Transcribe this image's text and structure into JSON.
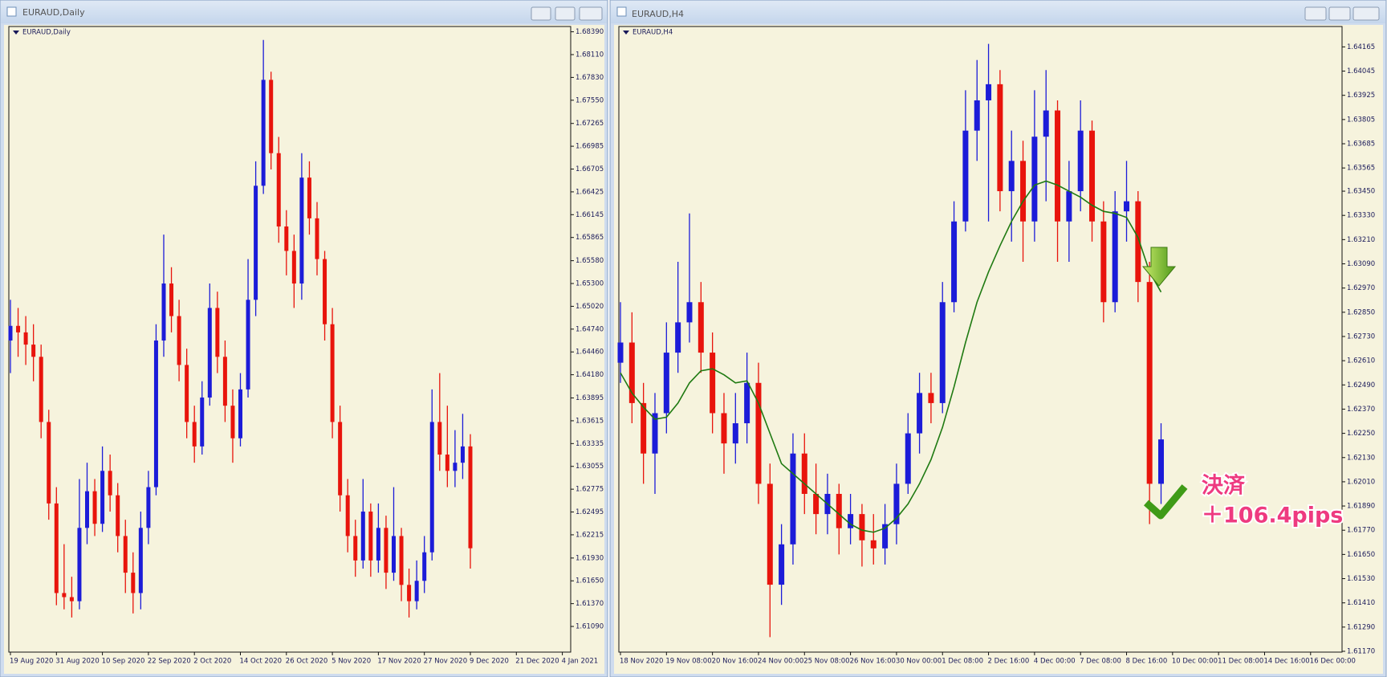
{
  "windows": [
    "EURAUD,Daily",
    "EURAUD,H4"
  ],
  "chart_data": [
    {
      "type": "candlestick",
      "title": "EURAUD,Daily",
      "up_color": "#1c1cd8",
      "down_color": "#e8140c",
      "ylim": [
        1.60775,
        1.68455
      ],
      "yticks": [
        {
          "value": 1.6839,
          "label": "1.68390"
        },
        {
          "value": 1.6811,
          "label": "1.68110"
        },
        {
          "value": 1.6783,
          "label": "1.67830"
        },
        {
          "value": 1.6755,
          "label": "1.67550"
        },
        1.67265,
        1.66985,
        1.66705,
        1.66425,
        1.66145,
        1.65865,
        {
          "value": 1.6558,
          "label": "1.65580"
        },
        {
          "value": 1.653,
          "label": "1.65300"
        },
        {
          "value": 1.6502,
          "label": "1.65020"
        },
        {
          "value": 1.6474,
          "label": "1.64740"
        },
        {
          "value": 1.6446,
          "label": "1.64460"
        },
        {
          "value": 1.6418,
          "label": "1.64180"
        },
        1.63895,
        1.63615,
        1.63335,
        1.63055,
        1.62775,
        1.62495,
        1.62215,
        {
          "value": 1.6193,
          "label": "1.61930"
        },
        {
          "value": 1.6165,
          "label": "1.61650"
        },
        {
          "value": 1.6137,
          "label": "1.61370"
        },
        {
          "value": 1.6109,
          "label": "1.61090"
        }
      ],
      "xticks": [
        "19 Aug 2020",
        "31 Aug 2020",
        "10 Sep 2020",
        "22 Sep 2020",
        "2 Oct 2020",
        "14 Oct 2020",
        "26 Oct 2020",
        "5 Nov 2020",
        "17 Nov 2020",
        "27 Nov 2020",
        "9 Dec 2020",
        "21 Dec 2020",
        "4 Jan 2021"
      ],
      "candles": [
        [
          1.646,
          1.651,
          1.642,
          1.6478
        ],
        [
          1.6478,
          1.65,
          1.644,
          1.647
        ],
        [
          1.647,
          1.649,
          1.643,
          1.6455
        ],
        [
          1.6455,
          1.648,
          1.641,
          1.644
        ],
        [
          1.644,
          1.6455,
          1.634,
          1.636
        ],
        [
          1.636,
          1.6375,
          1.624,
          1.626
        ],
        [
          1.626,
          1.628,
          1.6135,
          1.615
        ],
        [
          1.615,
          1.621,
          1.613,
          1.6145
        ],
        [
          1.6145,
          1.617,
          1.612,
          1.614
        ],
        [
          1.614,
          1.629,
          1.613,
          1.623
        ],
        [
          1.623,
          1.631,
          1.621,
          1.6275
        ],
        [
          1.6275,
          1.629,
          1.622,
          1.6235
        ],
        [
          1.6235,
          1.633,
          1.6225,
          1.63
        ],
        [
          1.63,
          1.632,
          1.625,
          1.627
        ],
        [
          1.627,
          1.6285,
          1.62,
          1.622
        ],
        [
          1.622,
          1.624,
          1.615,
          1.6175
        ],
        [
          1.6175,
          1.62,
          1.6125,
          1.615
        ],
        [
          1.615,
          1.625,
          1.613,
          1.623
        ],
        [
          1.623,
          1.63,
          1.621,
          1.628
        ],
        [
          1.628,
          1.648,
          1.627,
          1.646
        ],
        [
          1.646,
          1.659,
          1.644,
          1.653
        ],
        [
          1.653,
          1.655,
          1.647,
          1.649
        ],
        [
          1.649,
          1.651,
          1.641,
          1.643
        ],
        [
          1.643,
          1.645,
          1.634,
          1.636
        ],
        [
          1.636,
          1.638,
          1.631,
          1.633
        ],
        [
          1.633,
          1.641,
          1.632,
          1.639
        ],
        [
          1.639,
          1.653,
          1.638,
          1.65
        ],
        [
          1.65,
          1.652,
          1.642,
          1.644
        ],
        [
          1.644,
          1.646,
          1.636,
          1.638
        ],
        [
          1.638,
          1.64,
          1.631,
          1.634
        ],
        [
          1.634,
          1.642,
          1.633,
          1.64
        ],
        [
          1.64,
          1.656,
          1.639,
          1.651
        ],
        [
          1.651,
          1.668,
          1.649,
          1.665
        ],
        [
          1.665,
          1.6829,
          1.664,
          1.678
        ],
        [
          1.678,
          1.679,
          1.667,
          1.669
        ],
        [
          1.669,
          1.671,
          1.658,
          1.66
        ],
        [
          1.66,
          1.662,
          1.654,
          1.657
        ],
        [
          1.657,
          1.659,
          1.65,
          1.653
        ],
        [
          1.653,
          1.669,
          1.651,
          1.666
        ],
        [
          1.666,
          1.668,
          1.659,
          1.661
        ],
        [
          1.661,
          1.663,
          1.654,
          1.656
        ],
        [
          1.656,
          1.657,
          1.646,
          1.648
        ],
        [
          1.648,
          1.65,
          1.634,
          1.636
        ],
        [
          1.636,
          1.638,
          1.625,
          1.627
        ],
        [
          1.627,
          1.629,
          1.62,
          1.622
        ],
        [
          1.622,
          1.624,
          1.617,
          1.619
        ],
        [
          1.619,
          1.629,
          1.618,
          1.625
        ],
        [
          1.625,
          1.626,
          1.617,
          1.619
        ],
        [
          1.619,
          1.626,
          1.6175,
          1.623
        ],
        [
          1.623,
          1.6245,
          1.6155,
          1.6175
        ],
        [
          1.6175,
          1.628,
          1.6165,
          1.622
        ],
        [
          1.622,
          1.623,
          1.614,
          1.616
        ],
        [
          1.616,
          1.618,
          1.612,
          1.614
        ],
        [
          1.614,
          1.619,
          1.613,
          1.6165
        ],
        [
          1.6165,
          1.622,
          1.615,
          1.62
        ],
        [
          1.62,
          1.64,
          1.619,
          1.636
        ],
        [
          1.636,
          1.642,
          1.63,
          1.632
        ],
        [
          1.632,
          1.638,
          1.628,
          1.63
        ],
        [
          1.63,
          1.635,
          1.628,
          1.631
        ],
        [
          1.631,
          1.637,
          1.629,
          1.633
        ],
        [
          1.633,
          1.6345,
          1.618,
          1.6205
        ]
      ]
    },
    {
      "type": "candlestick",
      "title": "EURAUD,H4",
      "up_color": "#1c1cd8",
      "down_color": "#e8140c",
      "ma_color": "#1f7a12",
      "ylim": [
        1.61166,
        1.64266
      ],
      "yticks": [
        1.64165,
        1.64045,
        1.63925,
        1.63805,
        1.63685,
        1.63565,
        {
          "value": 1.6345,
          "label": "1.63450"
        },
        {
          "value": 1.6333,
          "label": "1.63330"
        },
        {
          "value": 1.6321,
          "label": "1.63210"
        },
        {
          "value": 1.6309,
          "label": "1.63090"
        },
        {
          "value": 1.6297,
          "label": "1.62970"
        },
        {
          "value": 1.6285,
          "label": "1.62850"
        },
        {
          "value": 1.6273,
          "label": "1.62730"
        },
        {
          "value": 1.6261,
          "label": "1.62610"
        },
        {
          "value": 1.6249,
          "label": "1.62490"
        },
        {
          "value": 1.6237,
          "label": "1.62370"
        },
        {
          "value": 1.6225,
          "label": "1.62250"
        },
        {
          "value": 1.6213,
          "label": "1.62130"
        },
        {
          "value": 1.6201,
          "label": "1.62010"
        },
        {
          "value": 1.6189,
          "label": "1.61890"
        },
        {
          "value": 1.6177,
          "label": "1.61770"
        },
        {
          "value": 1.6165,
          "label": "1.61650"
        },
        {
          "value": 1.6153,
          "label": "1.61530"
        },
        {
          "value": 1.6141,
          "label": "1.61410"
        },
        {
          "value": 1.6129,
          "label": "1.61290"
        },
        {
          "value": 1.6117,
          "label": "1.61170"
        }
      ],
      "xticks": [
        "18 Nov 2020",
        "19 Nov 08:00",
        "20 Nov 16:00",
        "24 Nov 00:00",
        "25 Nov 08:00",
        "26 Nov 16:00",
        "30 Nov 00:00",
        "1 Dec 08:00",
        "2 Dec 16:00",
        "4 Dec 00:00",
        "7 Dec 08:00",
        "8 Dec 16:00",
        "10 Dec 00:00",
        "11 Dec 08:00",
        "14 Dec 16:00",
        "16 Dec 00:00"
      ],
      "candles": [
        [
          1.626,
          1.629,
          1.625,
          1.627
        ],
        [
          1.627,
          1.6285,
          1.623,
          1.624
        ],
        [
          1.624,
          1.625,
          1.62,
          1.6215
        ],
        [
          1.6215,
          1.6245,
          1.6195,
          1.6235
        ],
        [
          1.6235,
          1.628,
          1.6225,
          1.6265
        ],
        [
          1.6265,
          1.631,
          1.6255,
          1.628
        ],
        [
          1.628,
          1.6334,
          1.627,
          1.629
        ],
        [
          1.629,
          1.63,
          1.6255,
          1.6265
        ],
        [
          1.6265,
          1.6275,
          1.6225,
          1.6235
        ],
        [
          1.6235,
          1.6245,
          1.6205,
          1.622
        ],
        [
          1.622,
          1.6245,
          1.621,
          1.623
        ],
        [
          1.623,
          1.6265,
          1.622,
          1.625
        ],
        [
          1.625,
          1.626,
          1.619,
          1.62
        ],
        [
          1.62,
          1.621,
          1.6124,
          1.615
        ],
        [
          1.615,
          1.618,
          1.614,
          1.617
        ],
        [
          1.617,
          1.6225,
          1.616,
          1.6215
        ],
        [
          1.6215,
          1.6225,
          1.6185,
          1.6195
        ],
        [
          1.6195,
          1.621,
          1.6175,
          1.6185
        ],
        [
          1.6185,
          1.6205,
          1.6175,
          1.6195
        ],
        [
          1.6195,
          1.62,
          1.6165,
          1.6178
        ],
        [
          1.6178,
          1.6195,
          1.617,
          1.6185
        ],
        [
          1.6185,
          1.619,
          1.6159,
          1.6172
        ],
        [
          1.6172,
          1.6185,
          1.616,
          1.6168
        ],
        [
          1.6168,
          1.619,
          1.616,
          1.618
        ],
        [
          1.618,
          1.621,
          1.617,
          1.62
        ],
        [
          1.62,
          1.6235,
          1.6195,
          1.6225
        ],
        [
          1.6225,
          1.6255,
          1.6215,
          1.6245
        ],
        [
          1.6245,
          1.6255,
          1.623,
          1.624
        ],
        [
          1.624,
          1.63,
          1.6235,
          1.629
        ],
        [
          1.629,
          1.634,
          1.6285,
          1.633
        ],
        [
          1.633,
          1.6395,
          1.6325,
          1.6375
        ],
        [
          1.6375,
          1.641,
          1.636,
          1.639
        ],
        [
          1.639,
          1.6418,
          1.633,
          1.6398
        ],
        [
          1.6398,
          1.6405,
          1.6335,
          1.6345
        ],
        [
          1.6345,
          1.6375,
          1.632,
          1.636
        ],
        [
          1.636,
          1.637,
          1.631,
          1.633
        ],
        [
          1.633,
          1.6395,
          1.632,
          1.6372
        ],
        [
          1.6372,
          1.6405,
          1.634,
          1.6385
        ],
        [
          1.6385,
          1.639,
          1.631,
          1.633
        ],
        [
          1.633,
          1.636,
          1.631,
          1.6345
        ],
        [
          1.6345,
          1.639,
          1.6335,
          1.6375
        ],
        [
          1.6375,
          1.638,
          1.632,
          1.633
        ],
        [
          1.633,
          1.634,
          1.628,
          1.629
        ],
        [
          1.629,
          1.6345,
          1.6285,
          1.6335
        ],
        [
          1.6335,
          1.636,
          1.632,
          1.634
        ],
        [
          1.634,
          1.6345,
          1.629,
          1.63
        ],
        [
          1.63,
          1.631,
          1.618,
          1.62
        ],
        [
          1.62,
          1.623,
          1.619,
          1.6222
        ]
      ],
      "ma_values": [
        1.6255,
        1.6245,
        1.6238,
        1.6232,
        1.6233,
        1.624,
        1.625,
        1.6256,
        1.6257,
        1.6254,
        1.625,
        1.6251,
        1.624,
        1.6225,
        1.621,
        1.6205,
        1.62,
        1.6195,
        1.619,
        1.6185,
        1.618,
        1.6177,
        1.6176,
        1.6178,
        1.6183,
        1.619,
        1.62,
        1.6212,
        1.6228,
        1.6248,
        1.627,
        1.629,
        1.6305,
        1.6318,
        1.633,
        1.634,
        1.6348,
        1.635,
        1.6348,
        1.6345,
        1.6342,
        1.6338,
        1.6335,
        1.6334,
        1.6332,
        1.6322,
        1.6305,
        1.6295
      ],
      "annotations": [
        "決済",
        "＋106.4pips"
      ]
    }
  ]
}
